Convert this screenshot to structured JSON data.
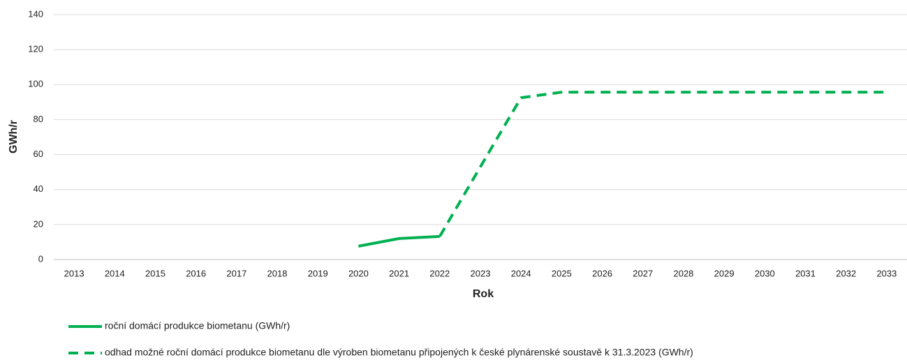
{
  "chart_data": {
    "type": "line",
    "x_label": "Rok",
    "y_label": "GWh/r",
    "categories": [
      "2013",
      "2014",
      "2015",
      "2016",
      "2017",
      "2018",
      "2019",
      "2020",
      "2021",
      "2022",
      "2023",
      "2024",
      "2025",
      "2026",
      "2027",
      "2028",
      "2029",
      "2030",
      "2031",
      "2032",
      "2033"
    ],
    "series": [
      {
        "name": "roční domácí produkce biometanu (GWh/r)",
        "color": "#00b050",
        "dashed": false,
        "values": [
          null,
          null,
          null,
          null,
          null,
          null,
          null,
          7.6,
          12,
          13.2,
          null,
          null,
          null,
          null,
          null,
          null,
          null,
          null,
          null,
          null,
          null
        ]
      },
      {
        "name": "odhad možné roční domácí produkce biometanu dle výroben biometanu připojených k české plynárenské soustavě k 31.3.2023 (GWh/r)",
        "color": "#00b050",
        "dashed": true,
        "values": [
          null,
          null,
          null,
          null,
          null,
          null,
          null,
          null,
          null,
          13.2,
          53,
          92.5,
          95.7,
          95.7,
          95.7,
          95.7,
          95.7,
          95.7,
          95.7,
          95.7,
          95.7
        ]
      }
    ],
    "ylim": [
      0,
      140
    ],
    "yticks": [
      0,
      20,
      40,
      60,
      80,
      100,
      120,
      140
    ],
    "grid": true
  }
}
